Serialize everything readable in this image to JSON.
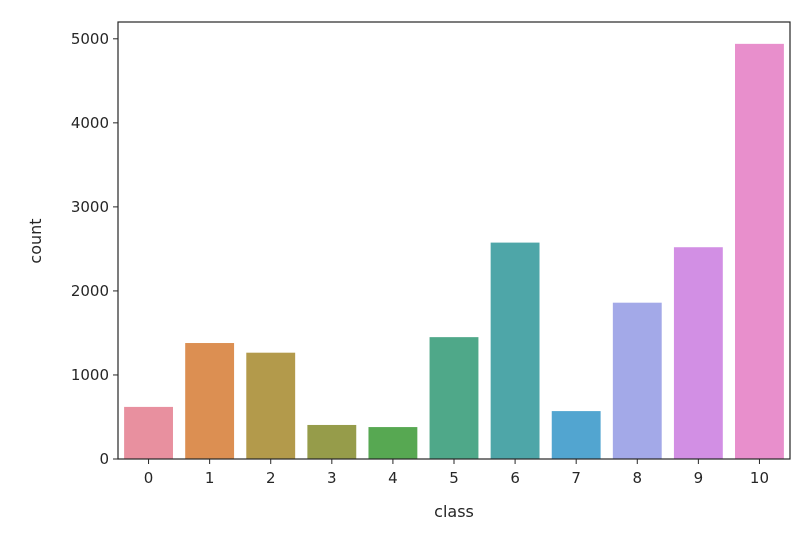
{
  "chart_data": {
    "type": "bar",
    "xlabel": "class",
    "ylabel": "count",
    "categories": [
      "0",
      "1",
      "2",
      "3",
      "4",
      "5",
      "6",
      "7",
      "8",
      "9",
      "10"
    ],
    "values": [
      620,
      1380,
      1265,
      405,
      380,
      1450,
      2575,
      570,
      1860,
      2520,
      4940
    ],
    "ylim": [
      0,
      5200
    ],
    "yticks": [
      0,
      1000,
      2000,
      3000,
      4000,
      5000
    ],
    "grid": false,
    "colors": [
      "#e8909f",
      "#dc8f52",
      "#b39a4b",
      "#969c4a",
      "#57a852",
      "#4fa889",
      "#4ea6a8",
      "#52a5d0",
      "#a3a9e8",
      "#d28fe4",
      "#e88fcc"
    ]
  }
}
